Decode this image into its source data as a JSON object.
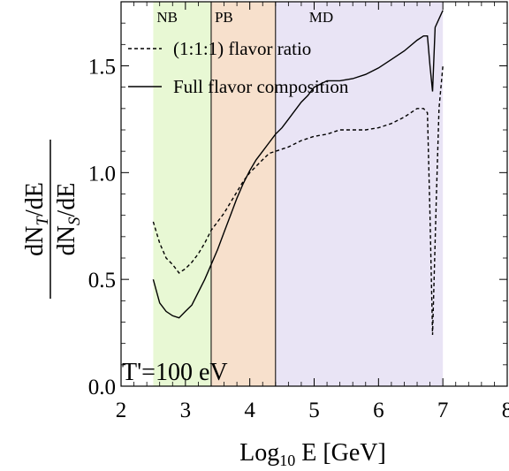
{
  "chart_data": {
    "type": "line",
    "xlabel_main": "Log",
    "xlabel_sub": "10",
    "xlabel_rest": " E [GeV]",
    "ylabel_num_pre": "dN",
    "ylabel_num_sub": "T",
    "ylabel_num_post": "/dE",
    "ylabel_den_pre": "dN",
    "ylabel_den_sub": "S",
    "ylabel_den_post": "/dE",
    "xlim": [
      2,
      8
    ],
    "ylim": [
      0,
      1.8
    ],
    "xticks": [
      2,
      3,
      4,
      5,
      6,
      7,
      8
    ],
    "xtick_labels": [
      "2",
      "3",
      "4",
      "5",
      "6",
      "7",
      "8"
    ],
    "yticks": [
      0,
      0.5,
      1,
      1.5
    ],
    "ytick_labels": [
      "0.0",
      "0.5",
      "1.0",
      "1.5"
    ],
    "bands": [
      {
        "label": "NB",
        "x0": 2.5,
        "x1": 3.4,
        "color": "#e8f8d4"
      },
      {
        "label": "PB",
        "x0": 3.4,
        "x1": 4.4,
        "color": "#f7e0cc"
      },
      {
        "label": "MD",
        "x0": 4.4,
        "x1": 7.0,
        "color": "#e9e4f5"
      }
    ],
    "annotation": "T'=100 eV",
    "series": [
      {
        "name": "(1:1:1) flavor ratio",
        "style": "dashed",
        "x": [
          2.5,
          2.6,
          2.7,
          2.8,
          2.9,
          3.0,
          3.1,
          3.2,
          3.3,
          3.4,
          3.5,
          3.6,
          3.7,
          3.8,
          3.9,
          4.0,
          4.1,
          4.2,
          4.3,
          4.4,
          4.6,
          4.8,
          5.0,
          5.2,
          5.4,
          5.6,
          5.8,
          6.0,
          6.2,
          6.4,
          6.6,
          6.7,
          6.76,
          6.8,
          6.84,
          6.9,
          6.94,
          7.0
        ],
        "y": [
          0.77,
          0.67,
          0.6,
          0.57,
          0.53,
          0.55,
          0.58,
          0.62,
          0.67,
          0.73,
          0.77,
          0.81,
          0.86,
          0.91,
          0.96,
          1.0,
          1.03,
          1.06,
          1.09,
          1.1,
          1.12,
          1.15,
          1.17,
          1.18,
          1.2,
          1.2,
          1.2,
          1.21,
          1.23,
          1.26,
          1.3,
          1.3,
          1.28,
          0.8,
          0.24,
          0.9,
          1.3,
          1.5
        ]
      },
      {
        "name": "Full flavor composition",
        "style": "solid",
        "x": [
          2.5,
          2.6,
          2.7,
          2.8,
          2.9,
          3.0,
          3.1,
          3.2,
          3.3,
          3.4,
          3.5,
          3.6,
          3.7,
          3.8,
          3.9,
          4.0,
          4.1,
          4.2,
          4.3,
          4.4,
          4.5,
          4.6,
          4.7,
          4.8,
          4.9,
          5.0,
          5.2,
          5.4,
          5.6,
          5.8,
          6.0,
          6.2,
          6.4,
          6.6,
          6.7,
          6.76,
          6.8,
          6.84,
          6.88,
          6.94,
          7.0
        ],
        "y": [
          0.5,
          0.39,
          0.35,
          0.33,
          0.32,
          0.35,
          0.38,
          0.44,
          0.5,
          0.57,
          0.64,
          0.72,
          0.8,
          0.88,
          0.95,
          1.01,
          1.06,
          1.1,
          1.14,
          1.18,
          1.21,
          1.25,
          1.29,
          1.33,
          1.36,
          1.4,
          1.43,
          1.43,
          1.44,
          1.46,
          1.49,
          1.53,
          1.57,
          1.62,
          1.64,
          1.64,
          1.5,
          1.38,
          1.68,
          1.72,
          1.76
        ]
      }
    ]
  }
}
